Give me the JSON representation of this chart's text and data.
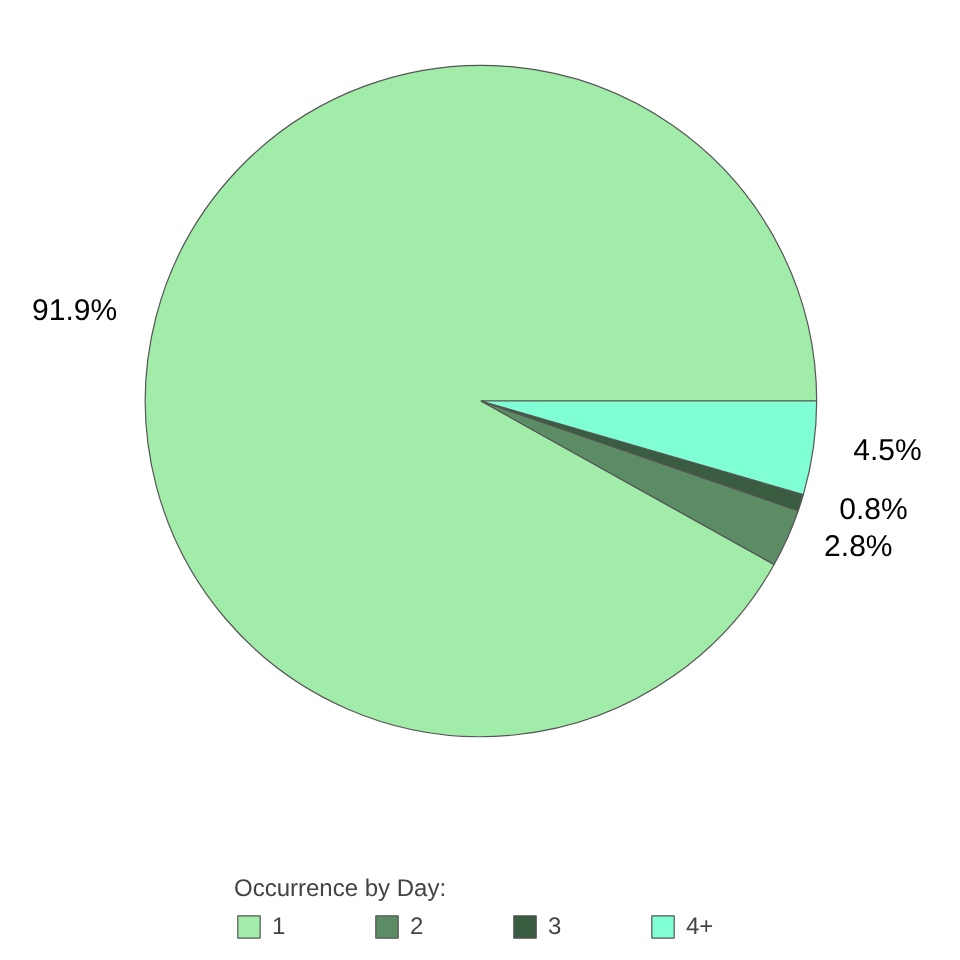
{
  "chart_data": {
    "type": "pie",
    "legend_title": "Occurrence by Day:",
    "categories": [
      "1",
      "2",
      "3",
      "4+"
    ],
    "values": [
      91.9,
      2.8,
      0.8,
      4.5
    ],
    "colors": [
      "#a0eca8",
      "#5c8c64",
      "#3a5c40",
      "#80ffd4"
    ],
    "value_labels": [
      "91.9%",
      "2.8%",
      "0.8%",
      "4.5%"
    ],
    "legend": "bottom"
  }
}
